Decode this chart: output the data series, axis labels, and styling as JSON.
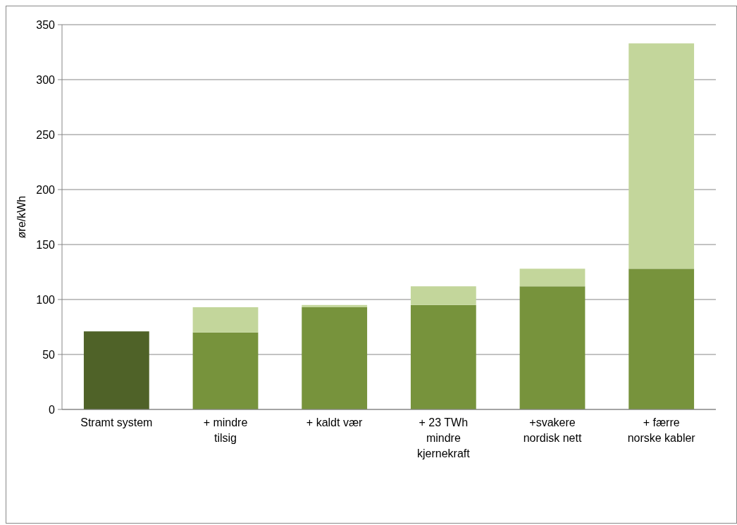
{
  "chart_data": {
    "type": "bar",
    "stacked": true,
    "ylabel": "øre/kWh",
    "categories": [
      "Stramt system",
      "+ mindre tilsig",
      "+ kaldt vær",
      "+ 23 TWh mindre kjernekraft",
      "+svakere nordisk nett",
      "+ færre norske kabler"
    ],
    "series": [
      {
        "colors": [
          "#4f6228",
          "#77933c",
          "#77933c",
          "#77933c",
          "#77933c",
          "#77933c"
        ],
        "values": [
          71,
          70,
          93,
          95,
          112,
          128
        ]
      },
      {
        "color": "#c3d69b",
        "values": [
          null,
          23,
          2,
          17,
          16,
          205
        ]
      }
    ],
    "ylim": [
      0,
      350
    ],
    "yticks": [
      0,
      50,
      100,
      150,
      200,
      250,
      300,
      350
    ],
    "grid": "y"
  }
}
